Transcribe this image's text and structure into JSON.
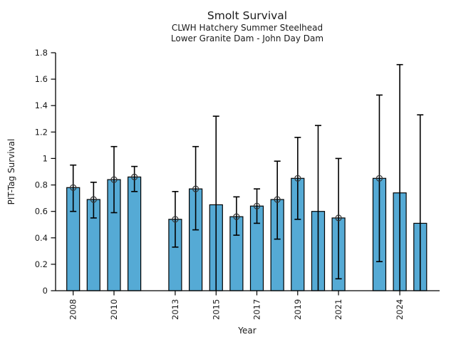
{
  "chart_data": {
    "type": "bar",
    "title": "Smolt Survival",
    "subtitle_line1": "CLWH Hatchery Summer Steelhead",
    "subtitle_line2": "Lower Granite Dam - John Day Dam",
    "xlabel": "Year",
    "ylabel": "PIT-Tag Survival",
    "ylim": [
      0,
      1.8
    ],
    "grid": false,
    "legend": "none",
    "bar_color": "#55AAD5",
    "bar_edge_color": "#000000",
    "error_bar_color": "#000000",
    "marker_edge_color": "#333333",
    "y_ticks": [
      {
        "value": 0.0,
        "label": "0"
      },
      {
        "value": 0.2,
        "label": "0.2"
      },
      {
        "value": 0.4,
        "label": "0.4"
      },
      {
        "value": 0.6,
        "label": "0.6"
      },
      {
        "value": 0.8,
        "label": "0.8"
      },
      {
        "value": 1.0,
        "label": "1"
      },
      {
        "value": 1.2,
        "label": "1.2"
      },
      {
        "value": 1.4,
        "label": "1.4"
      },
      {
        "value": 1.6,
        "label": "1.6"
      },
      {
        "value": 1.8,
        "label": "1.8"
      }
    ],
    "x_ticks": [
      {
        "value": 2008,
        "label": "2008"
      },
      {
        "value": 2010,
        "label": "2010"
      },
      {
        "value": 2013,
        "label": "2013"
      },
      {
        "value": 2015,
        "label": "2015"
      },
      {
        "value": 2017,
        "label": "2017"
      },
      {
        "value": 2019,
        "label": "2019"
      },
      {
        "value": 2021,
        "label": "2021"
      },
      {
        "value": 2024,
        "label": "2024"
      }
    ],
    "bars": [
      {
        "year": 2008,
        "value": 0.78,
        "err_low": 0.6,
        "err_high": 0.95,
        "marker": true
      },
      {
        "year": 2009,
        "value": 0.69,
        "err_low": 0.55,
        "err_high": 0.82,
        "marker": true
      },
      {
        "year": 2010,
        "value": 0.84,
        "err_low": 0.59,
        "err_high": 1.09,
        "marker": true
      },
      {
        "year": 2011,
        "value": 0.86,
        "err_low": 0.75,
        "err_high": 0.94,
        "marker": true
      },
      {
        "year": 2013,
        "value": 0.54,
        "err_low": 0.33,
        "err_high": 0.75,
        "marker": true
      },
      {
        "year": 2014,
        "value": 0.77,
        "err_low": 0.46,
        "err_high": 1.09,
        "marker": true
      },
      {
        "year": 2015,
        "value": 0.65,
        "err_low": 0.0,
        "err_high": 1.32,
        "marker": false
      },
      {
        "year": 2016,
        "value": 0.56,
        "err_low": 0.42,
        "err_high": 0.71,
        "marker": true
      },
      {
        "year": 2017,
        "value": 0.64,
        "err_low": 0.51,
        "err_high": 0.77,
        "marker": true
      },
      {
        "year": 2018,
        "value": 0.69,
        "err_low": 0.39,
        "err_high": 0.98,
        "marker": true
      },
      {
        "year": 2019,
        "value": 0.85,
        "err_low": 0.54,
        "err_high": 1.16,
        "marker": true
      },
      {
        "year": 2020,
        "value": 0.6,
        "err_low": 0.0,
        "err_high": 1.25,
        "marker": false
      },
      {
        "year": 2021,
        "value": 0.55,
        "err_low": 0.09,
        "err_high": 1.0,
        "marker": true
      },
      {
        "year": 2023,
        "value": 0.85,
        "err_low": 0.22,
        "err_high": 1.48,
        "marker": true
      },
      {
        "year": 2024,
        "value": 0.74,
        "err_low": 0.0,
        "err_high": 1.71,
        "marker": false
      },
      {
        "year": 2025,
        "value": 0.51,
        "err_low": 0.0,
        "err_high": 1.33,
        "marker": false
      }
    ]
  }
}
